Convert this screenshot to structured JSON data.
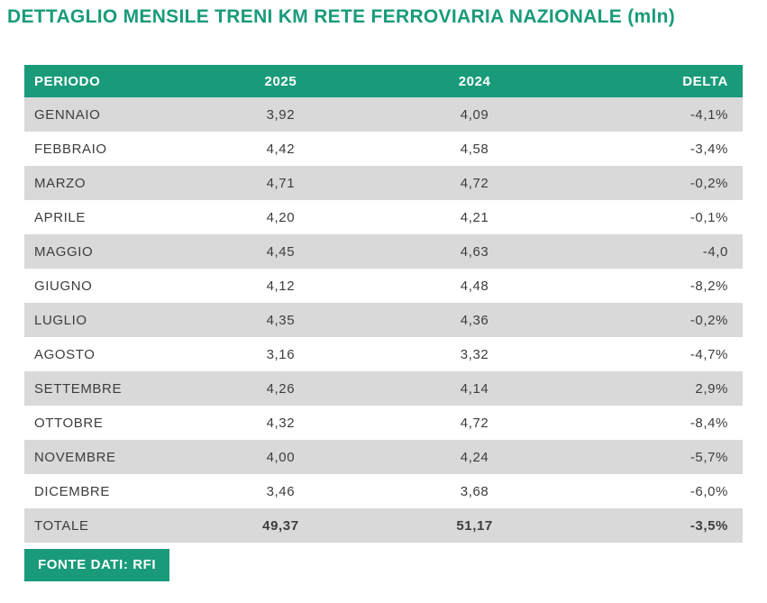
{
  "title": "DETTAGLIO MENSILE TRENI KM RETE FERROVIARIA NAZIONALE (mln)",
  "source_badge": "FONTE DATI: RFI",
  "colors": {
    "accent_green": "#199b7a",
    "stripe_gray": "#d9d9d9",
    "text_dark": "#3d3d3d",
    "header_text": "#ffffff"
  },
  "chart_data": {
    "type": "table",
    "title": "DETTAGLIO MENSILE TRENI KM RETE FERROVIARIA NAZIONALE (mln)",
    "unit": "mln treni km",
    "columns": [
      "PERIODO",
      "2025",
      "2024",
      "DELTA"
    ],
    "rows": [
      [
        "GENNAIO",
        "3,92",
        "4,09",
        "-4,1%"
      ],
      [
        "FEBBRAIO",
        "4,42",
        "4,58",
        "-3,4%"
      ],
      [
        "MARZO",
        "4,71",
        "4,72",
        "-0,2%"
      ],
      [
        "APRILE",
        "4,20",
        "4,21",
        "-0,1%"
      ],
      [
        "MAGGIO",
        "4,45",
        "4,63",
        "-4,0"
      ],
      [
        "GIUGNO",
        "4,12",
        "4,48",
        "-8,2%"
      ],
      [
        "LUGLIO",
        "4,35",
        "4,36",
        "-0,2%"
      ],
      [
        "AGOSTO",
        "3,16",
        "3,32",
        "-4,7%"
      ],
      [
        "SETTEMBRE",
        "4,26",
        "4,14",
        "2,9%"
      ],
      [
        "OTTOBRE",
        "4,32",
        "4,72",
        "-8,4%"
      ],
      [
        "NOVEMBRE",
        "4,00",
        "4,24",
        "-5,7%"
      ],
      [
        "DICEMBRE",
        "3,46",
        "3,68",
        "-6,0%"
      ]
    ],
    "total_row": [
      "TOTALE",
      "49,37",
      "51,17",
      "-3,5%"
    ],
    "source": "FONTE DATI: RFI",
    "layout_hints": {
      "zebra_striping": true,
      "first_row_shaded": true,
      "col_alignments": [
        "left",
        "center",
        "center",
        "right"
      ]
    }
  }
}
